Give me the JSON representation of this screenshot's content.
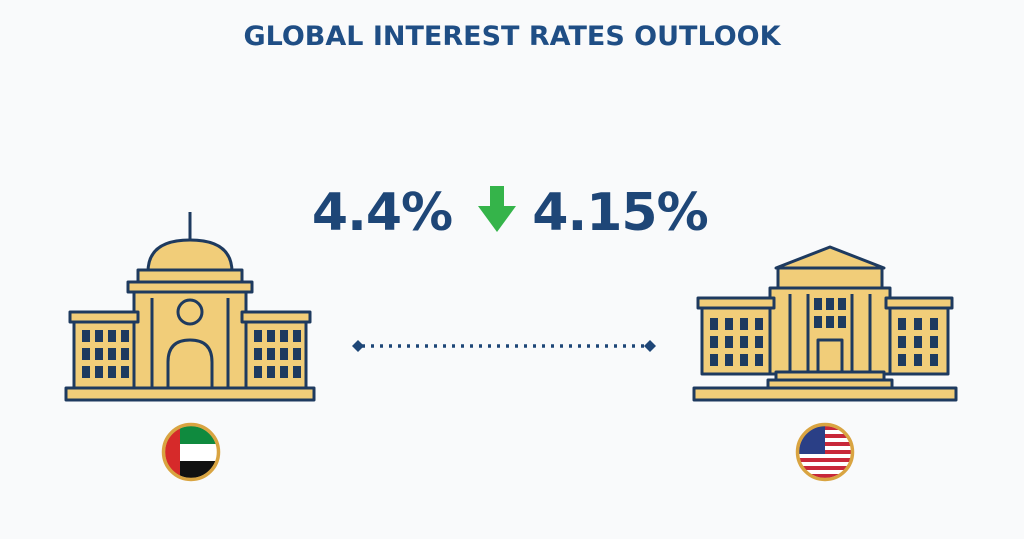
{
  "title": "GLOBAL INTEREST RATES OUTLOOK",
  "rates": {
    "from": "4.4%",
    "to": "4.15%"
  }
}
